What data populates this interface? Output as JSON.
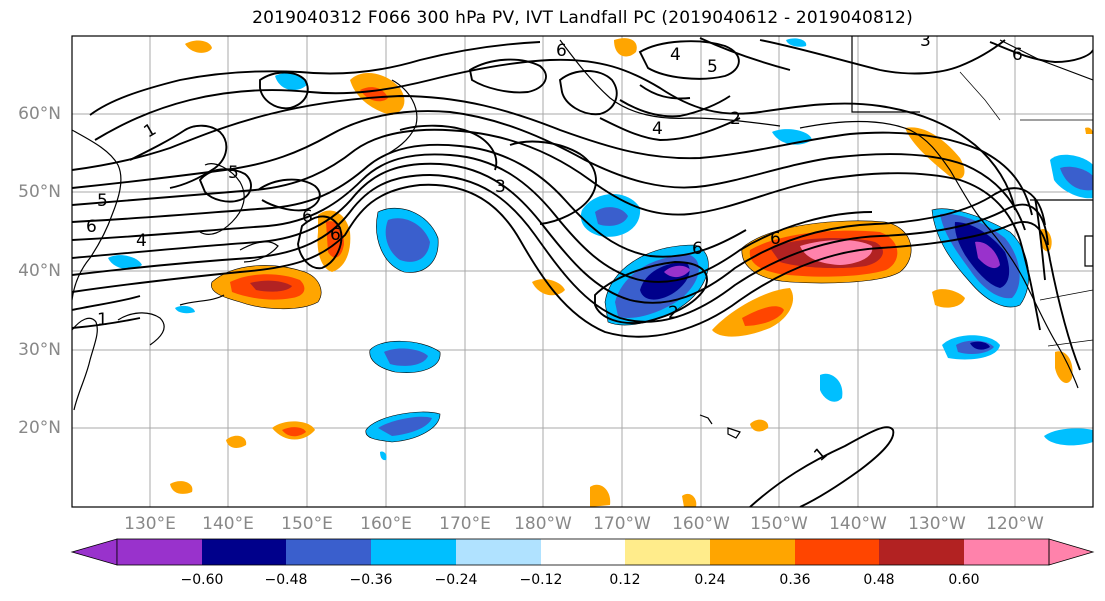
{
  "title": "2019040312 F066 300 hPa PV, IVT Landfall PC (2019040612 - 2019040812)",
  "lat_labels": [
    "60°N",
    "50°N",
    "40°N",
    "30°N",
    "20°N"
  ],
  "lon_labels": [
    "130°E",
    "140°E",
    "150°E",
    "160°E",
    "170°E",
    "180°W",
    "170°W",
    "160°W",
    "150°W",
    "140°W",
    "130°W",
    "120°W"
  ],
  "contour_labels": [
    "1",
    "1",
    "1",
    "1",
    "2",
    "2",
    "3",
    "3",
    "4",
    "4",
    "4",
    "5",
    "5",
    "5",
    "6",
    "6",
    "6",
    "6",
    "6",
    "6",
    "6"
  ],
  "colorbar": {
    "ticks": [
      "−0.60",
      "−0.48",
      "−0.36",
      "−0.24",
      "−0.12",
      "0.12",
      "0.24",
      "0.36",
      "0.48",
      "0.60"
    ],
    "colors": [
      "#9932cc",
      "#00008b",
      "#3a5fcd",
      "#00bfff",
      "#b0e2ff",
      "#ffffff",
      "#ffec8b",
      "#ffa500",
      "#ff4500",
      "#b22222",
      "#ff82ab"
    ]
  },
  "colors": {
    "pink": "#ff82ab",
    "dark_red": "#b22222",
    "red": "#ff4500",
    "orange": "#ffa500",
    "light_yellow": "#ffec8b",
    "light_blue": "#b0e2ff",
    "cyan": "#00bfff",
    "royal_blue": "#3a5fcd",
    "navy": "#00008b",
    "purple": "#9932cc"
  }
}
